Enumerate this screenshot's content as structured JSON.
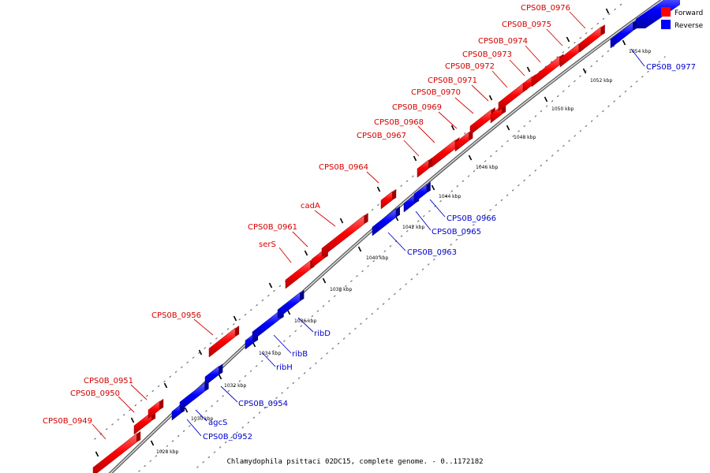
{
  "caption": "Chlamydophila psittaci 02DC15, complete genome. - 0..1172182",
  "legend": [
    {
      "label": "Forward",
      "color": "#ff0000"
    },
    {
      "label": "Reverse",
      "color": "#0000ff"
    }
  ],
  "colors": {
    "forward": "#ff0000",
    "reverse": "#0000ff",
    "backbone": "#888888"
  },
  "scale_labels": [
    "1028 kbp",
    "1030 kbp",
    "1032 kbp",
    "1034 kbp",
    "1036 kbp",
    "1038 kbp",
    "1040 kbp",
    "1042 kbp",
    "1044 kbp",
    "1046 kbp",
    "1048 kbp",
    "1050 kbp",
    "1052 kbp",
    "1054 kbp"
  ],
  "genes": [
    {
      "name": "CPS0B_0949",
      "strand": "forward"
    },
    {
      "name": "CPS0B_0950",
      "strand": "forward"
    },
    {
      "name": "CPS0B_0951",
      "strand": "forward"
    },
    {
      "name": "CPS0B_0952",
      "strand": "reverse"
    },
    {
      "name": "agcS",
      "strand": "reverse"
    },
    {
      "name": "CPS0B_0954",
      "strand": "reverse"
    },
    {
      "name": "CPS0B_0956",
      "strand": "forward"
    },
    {
      "name": "ribH",
      "strand": "reverse"
    },
    {
      "name": "ribB",
      "strand": "reverse"
    },
    {
      "name": "ribD",
      "strand": "reverse"
    },
    {
      "name": "serS",
      "strand": "forward"
    },
    {
      "name": "CPS0B_0961",
      "strand": "forward"
    },
    {
      "name": "cadA",
      "strand": "forward"
    },
    {
      "name": "CPS0B_0963",
      "strand": "reverse"
    },
    {
      "name": "CPS0B_0964",
      "strand": "forward"
    },
    {
      "name": "CPS0B_0965",
      "strand": "reverse"
    },
    {
      "name": "CPS0B_0966",
      "strand": "reverse"
    },
    {
      "name": "CPS0B_0967",
      "strand": "forward"
    },
    {
      "name": "CPS0B_0968",
      "strand": "forward"
    },
    {
      "name": "CPS0B_0969",
      "strand": "forward"
    },
    {
      "name": "CPS0B_0970",
      "strand": "forward"
    },
    {
      "name": "CPS0B_0971",
      "strand": "forward"
    },
    {
      "name": "CPS0B_0972",
      "strand": "forward"
    },
    {
      "name": "CPS0B_0973",
      "strand": "forward"
    },
    {
      "name": "CPS0B_0974",
      "strand": "forward"
    },
    {
      "name": "CPS0B_0975",
      "strand": "forward"
    },
    {
      "name": "CPS0B_0976",
      "strand": "forward"
    },
    {
      "name": "CPS0B_0977",
      "strand": "reverse"
    }
  ]
}
